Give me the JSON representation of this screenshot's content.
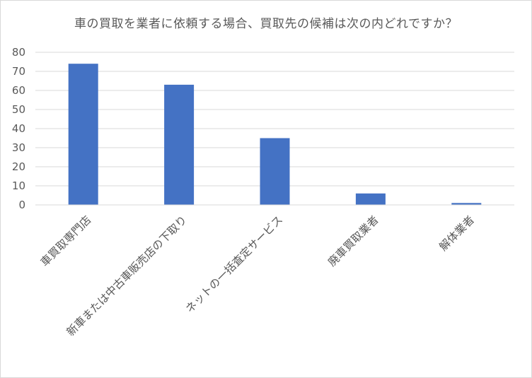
{
  "chart_data": {
    "type": "bar",
    "title": "車の買取を業者に依頼する場合、買取先の候補は次の内どれですか？",
    "categories": [
      "車買取専門店",
      "新車または中古車販売店の下取り",
      "ネットの一括査定サービス",
      "廃車買取業者",
      "解体業者"
    ],
    "values": [
      74,
      63,
      35,
      6,
      1
    ],
    "ylim": [
      0,
      80
    ],
    "yticks": [
      0,
      10,
      20,
      30,
      40,
      50,
      60,
      70,
      80
    ],
    "grid": true,
    "legend": "none",
    "colors": {
      "bar": "#4472c4",
      "grid": "#d9d9d9",
      "text": "#595959"
    }
  }
}
